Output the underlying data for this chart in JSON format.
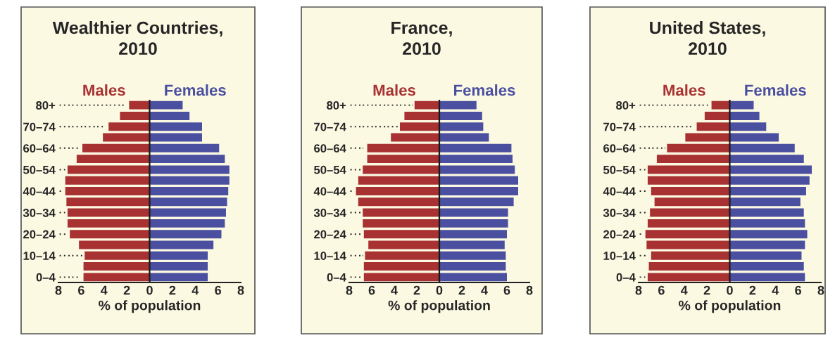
{
  "chart_data": [
    {
      "type": "bar",
      "orientation": "horizontal",
      "stacked": true,
      "title": "Wealthier Countries,\n2010",
      "xlabel": "% of population",
      "categories": [
        "80+",
        null,
        "70–74",
        null,
        "60–64",
        null,
        "50–54",
        null,
        "40–44",
        null,
        "30–34",
        null,
        "20–24",
        null,
        "10–14",
        null,
        "0–4"
      ],
      "series": [
        {
          "name": "Males",
          "color": "#a83232",
          "values": [
            -1.8,
            -2.6,
            -3.6,
            -4.1,
            -5.9,
            -6.4,
            -7.2,
            -7.4,
            -7.4,
            -7.3,
            -7.2,
            -7.2,
            -7.0,
            -6.2,
            -5.7,
            -5.8,
            -5.8
          ]
        },
        {
          "name": "Females",
          "color": "#4a4fa0",
          "values": [
            2.9,
            3.5,
            4.6,
            4.6,
            6.1,
            6.6,
            7.0,
            7.0,
            6.9,
            6.8,
            6.7,
            6.6,
            6.3,
            5.6,
            5.1,
            5.1,
            5.1
          ]
        }
      ],
      "xlim": [
        -8,
        8
      ],
      "xticks": [
        {
          "value": -8,
          "label": "8"
        },
        {
          "value": -6,
          "label": "6"
        },
        {
          "value": -4,
          "label": "4"
        },
        {
          "value": -2,
          "label": "2"
        },
        0,
        2,
        4,
        6,
        8
      ],
      "ref_lines": [
        {
          "axis": "x",
          "value": 0,
          "color": "#1a1a1a"
        }
      ]
    },
    {
      "type": "bar",
      "orientation": "horizontal",
      "stacked": true,
      "title": "France,\n2010",
      "xlabel": "% of population",
      "categories": [
        "80+",
        null,
        "70–74",
        null,
        "60–64",
        null,
        "50–54",
        null,
        "40–44",
        null,
        "30–34",
        null,
        "20–24",
        null,
        "10–14",
        null,
        "0–4"
      ],
      "series": [
        {
          "name": "Males",
          "color": "#a83232",
          "values": [
            -2.2,
            -3.1,
            -3.5,
            -4.3,
            -6.4,
            -6.4,
            -6.8,
            -7.2,
            -7.4,
            -7.2,
            -6.8,
            -6.8,
            -6.7,
            -6.3,
            -6.6,
            -6.7,
            -6.7
          ]
        },
        {
          "name": "Females",
          "color": "#4a4fa0",
          "values": [
            3.3,
            3.8,
            3.9,
            4.4,
            6.4,
            6.5,
            6.7,
            7.0,
            7.0,
            6.6,
            6.1,
            6.1,
            6.0,
            5.8,
            5.9,
            5.9,
            6.0
          ]
        }
      ],
      "xlim": [
        -8,
        8
      ],
      "xticks": [
        {
          "value": -8,
          "label": "8"
        },
        {
          "value": -6,
          "label": "6"
        },
        {
          "value": -4,
          "label": "4"
        },
        {
          "value": -2,
          "label": "2"
        },
        0,
        2,
        4,
        6,
        8
      ],
      "ref_lines": [
        {
          "axis": "x",
          "value": 0,
          "color": "#1a1a1a"
        }
      ]
    },
    {
      "type": "bar",
      "orientation": "horizontal",
      "stacked": true,
      "title": "United States,\n2010",
      "xlabel": "% of population",
      "categories": [
        "80+",
        null,
        "70–74",
        null,
        "60–64",
        null,
        "50–54",
        null,
        "40–44",
        null,
        "30–34",
        null,
        "20–24",
        null,
        "10–14",
        null,
        "0–4"
      ],
      "series": [
        {
          "name": "Males",
          "color": "#a83232",
          "values": [
            -1.6,
            -2.2,
            -2.9,
            -3.9,
            -5.5,
            -6.4,
            -7.2,
            -7.2,
            -6.9,
            -6.6,
            -7.0,
            -7.2,
            -7.4,
            -7.3,
            -6.9,
            -7.1,
            -7.2
          ]
        },
        {
          "name": "Females",
          "color": "#4a4fa0",
          "values": [
            2.1,
            2.6,
            3.2,
            4.3,
            5.7,
            6.5,
            7.2,
            7.0,
            6.7,
            6.2,
            6.5,
            6.6,
            6.8,
            6.6,
            6.3,
            6.5,
            6.6
          ]
        }
      ],
      "xlim": [
        -8,
        8
      ],
      "xticks": [
        {
          "value": -8,
          "label": "8"
        },
        {
          "value": -6,
          "label": "6"
        },
        {
          "value": -4,
          "label": "4"
        },
        {
          "value": -2,
          "label": "2"
        },
        0,
        2,
        4,
        6,
        8
      ],
      "ref_lines": [
        {
          "axis": "x",
          "value": 0,
          "color": "#1a1a1a"
        }
      ]
    }
  ]
}
